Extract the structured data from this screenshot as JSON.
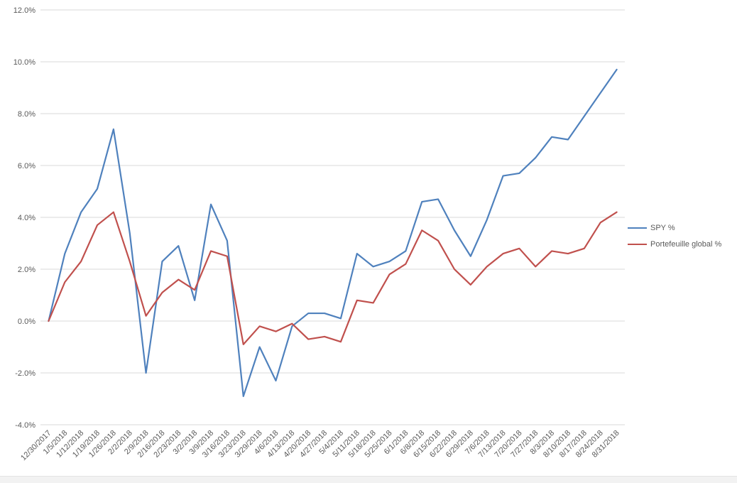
{
  "window": {
    "background": "#ffffff",
    "bottom_strip_color": "#f2f2f2"
  },
  "chart_data": {
    "type": "line",
    "title": "",
    "xlabel": "",
    "ylabel": "",
    "grid": true,
    "legend_position": "right",
    "gridline_color": "#d9d9d9",
    "axis_text_color": "#595959",
    "ylim": [
      -4,
      12
    ],
    "yticks": [
      {
        "value": 12,
        "label": "12.0%"
      },
      {
        "value": 10,
        "label": "10.0%"
      },
      {
        "value": 8,
        "label": "8.0%"
      },
      {
        "value": 6,
        "label": "6.0%"
      },
      {
        "value": 4,
        "label": "4.0%"
      },
      {
        "value": 2,
        "label": "2.0%"
      },
      {
        "value": 0,
        "label": "0.0%"
      },
      {
        "value": -2,
        "label": "-2.0%"
      },
      {
        "value": -4,
        "label": "-4.0%"
      }
    ],
    "categories": [
      "12/30/2017",
      "1/5/2018",
      "1/12/2018",
      "1/19/2018",
      "1/26/2018",
      "2/2/2018",
      "2/9/2018",
      "2/16/2018",
      "2/23/2018",
      "3/2/2018",
      "3/9/2018",
      "3/16/2018",
      "3/23/2018",
      "3/29/2018",
      "4/6/2018",
      "4/13/2018",
      "4/20/2018",
      "4/27/2018",
      "5/4/2018",
      "5/11/2018",
      "5/18/2018",
      "5/25/2018",
      "6/1/2018",
      "6/8/2018",
      "6/15/2018",
      "6/22/2018",
      "6/29/2018",
      "7/6/2018",
      "7/13/2018",
      "7/20/2018",
      "7/27/2018",
      "8/3/2018",
      "8/10/2018",
      "8/17/2018",
      "8/24/2018",
      "8/31/2018"
    ],
    "series": [
      {
        "name": "SPY %",
        "color": "#4f81bd",
        "values": [
          0.0,
          2.6,
          4.2,
          5.1,
          7.4,
          3.4,
          -2.0,
          2.3,
          2.9,
          0.8,
          4.5,
          3.1,
          -2.9,
          -1.0,
          -2.3,
          -0.2,
          0.3,
          0.3,
          0.1,
          2.6,
          2.1,
          2.3,
          2.7,
          4.6,
          4.7,
          3.5,
          2.5,
          3.9,
          5.6,
          5.7,
          6.3,
          7.1,
          7.0,
          7.9,
          8.8,
          9.7
        ]
      },
      {
        "name": "Portefeuille global %",
        "color": "#c0504d",
        "values": [
          0.0,
          1.5,
          2.3,
          3.7,
          4.2,
          2.3,
          0.2,
          1.1,
          1.6,
          1.2,
          2.7,
          2.5,
          -0.9,
          -0.2,
          -0.4,
          -0.1,
          -0.7,
          -0.6,
          -0.8,
          0.8,
          0.7,
          1.8,
          2.2,
          3.5,
          3.1,
          2.0,
          1.4,
          2.1,
          2.6,
          2.8,
          2.1,
          2.7,
          2.6,
          2.8,
          3.8,
          4.2
        ]
      }
    ]
  }
}
